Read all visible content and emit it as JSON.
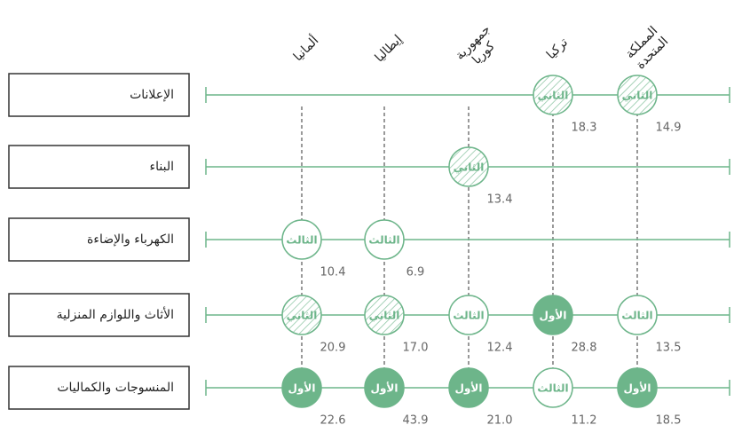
{
  "columns": [
    {
      "lines": [
        "ألمانيا"
      ]
    },
    {
      "lines": [
        "إيطاليا"
      ]
    },
    {
      "lines": [
        "جمهورية",
        "كوريا"
      ]
    },
    {
      "lines": [
        "تركيا"
      ]
    },
    {
      "lines": [
        "المملكة",
        "المتحدة"
      ]
    }
  ],
  "rows": [
    {
      "label": "الإعلانات",
      "cells": [
        null,
        null,
        null,
        {
          "rank": "الثاني",
          "value": "18.3",
          "style": "hatched"
        },
        {
          "rank": "الثاني",
          "value": "14.9",
          "style": "hatched"
        }
      ]
    },
    {
      "label": "البناء",
      "cells": [
        null,
        null,
        {
          "rank": "الثاني",
          "value": "13.4",
          "style": "hatched"
        },
        null,
        null
      ]
    },
    {
      "label": "الكهرباء والإضاءة",
      "cells": [
        {
          "rank": "الثالث",
          "value": "10.4",
          "style": "outline"
        },
        {
          "rank": "الثالث",
          "value": "6.9",
          "style": "outline"
        },
        null,
        null,
        null
      ]
    },
    {
      "label": "الأثاث واللوازم المنزلية",
      "cells": [
        {
          "rank": "الثاني",
          "value": "20.9",
          "style": "hatched"
        },
        {
          "rank": "الثاني",
          "value": "17.0",
          "style": "hatched"
        },
        {
          "rank": "الثالث",
          "value": "12.4",
          "style": "outline"
        },
        {
          "rank": "الأول",
          "value": "28.8",
          "style": "filled"
        },
        {
          "rank": "الثالث",
          "value": "13.5",
          "style": "outline"
        }
      ]
    },
    {
      "label": "المنسوجات والكماليات",
      "cells": [
        {
          "rank": "الأول",
          "value": "22.6",
          "style": "filled"
        },
        {
          "rank": "الأول",
          "value": "43.9",
          "style": "filled"
        },
        {
          "rank": "الأول",
          "value": "21.0",
          "style": "filled"
        },
        {
          "rank": "الثالث",
          "value": "11.2",
          "style": "outline"
        },
        {
          "rank": "الأول",
          "value": "18.5",
          "style": "filled"
        }
      ]
    }
  ],
  "color": "#6db58a"
}
